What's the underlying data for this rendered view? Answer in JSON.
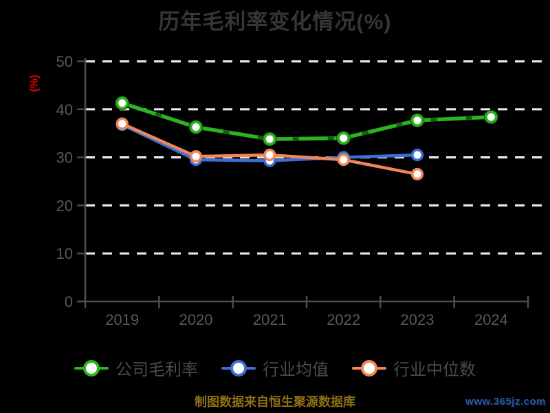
{
  "title": "历年毛利率变化情况(%)",
  "y_axis_unit": "(%)",
  "legend": {
    "items": [
      "公司毛利率",
      "行业均值",
      "行业中位数"
    ]
  },
  "footer": {
    "source_note": "制图数据来自恒生聚源数据库",
    "watermark": "www.365jz.com"
  },
  "colors": {
    "background": "#000000",
    "title_text": "#353637",
    "axis": "#4e4e4e",
    "tick_label": "#58585a",
    "gridline": "#e8e8e8",
    "y_unit_label": "#e60000",
    "legend_text": "#4a4a4c",
    "source_note": "#8f6f16",
    "watermark": "#2d5ca6",
    "series_company": "#2eb320",
    "series_company_sketch": "#14560e",
    "series_mean": "#3b6fd6",
    "series_median": "#ef8757",
    "marker_fill": "#ffffff"
  },
  "chart_data": {
    "type": "line",
    "title": "历年毛利率变化情况(%)",
    "categories": [
      "2019",
      "2020",
      "2021",
      "2022",
      "2023",
      "2024"
    ],
    "series": [
      {
        "name": "公司毛利率",
        "color": "#2eb320",
        "values": [
          41.3,
          36.3,
          33.8,
          34.0,
          37.7,
          38.4
        ]
      },
      {
        "name": "行业均值",
        "color": "#3b6fd6",
        "values": [
          36.8,
          29.5,
          29.3,
          30.0,
          30.5,
          null
        ]
      },
      {
        "name": "行业中位数",
        "color": "#ef8757",
        "values": [
          37.0,
          30.2,
          30.5,
          29.5,
          26.5,
          null
        ]
      }
    ],
    "xlabel": "",
    "ylabel": "(%)",
    "ylim": [
      0,
      50
    ],
    "yticks": [
      0,
      10,
      20,
      30,
      40,
      50
    ],
    "grid": true,
    "grid_style": "dashed",
    "legend_position": "bottom",
    "marker": "circle-white-fill"
  }
}
